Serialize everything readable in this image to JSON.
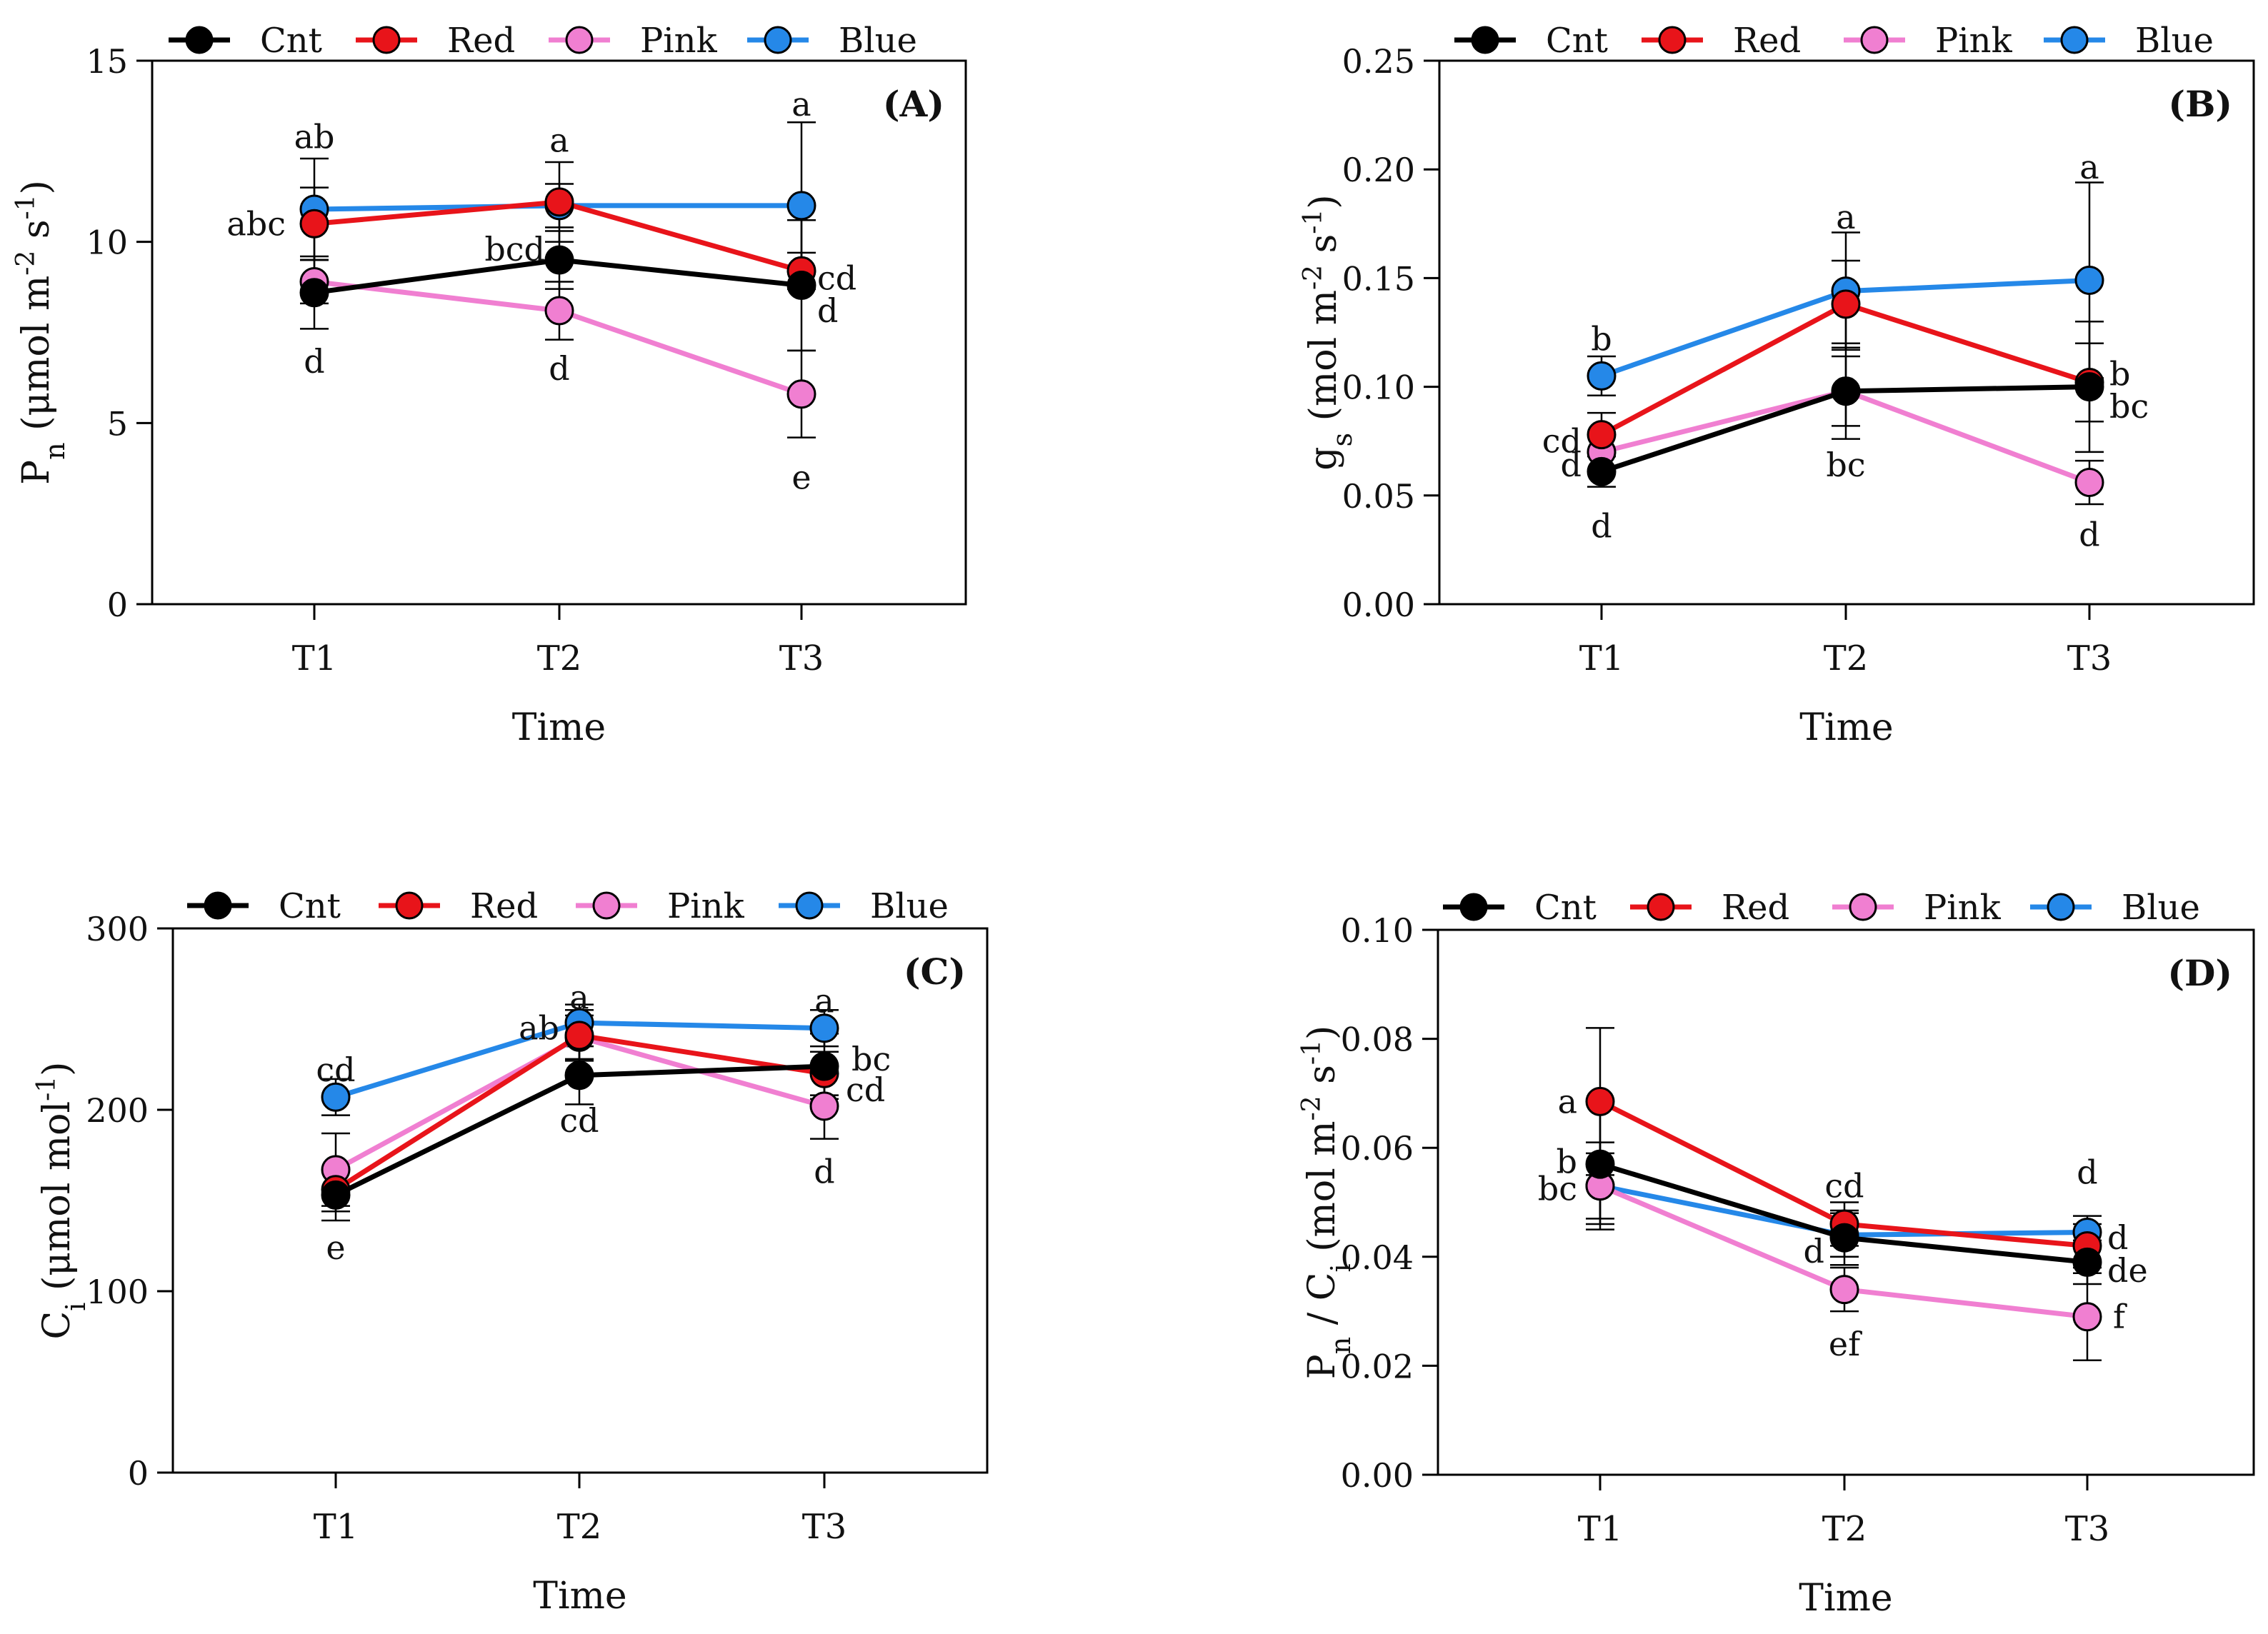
{
  "legend": {
    "labels": [
      "Cnt",
      "Red",
      "Pink",
      "Blue"
    ],
    "colors": [
      "#000000",
      "#e8141a",
      "#f07fd1",
      "#2588e8"
    ]
  },
  "chart_data": [
    {
      "id": "A",
      "type": "line",
      "panel_label": "(A)",
      "xlabel": "Time",
      "ylabel": "Pn (μmol m-2 s-1)",
      "ylabel_parts": {
        "main": "P",
        "sub": "n",
        "rest": " (μmol m",
        "exp1": "-2",
        "mid": " s",
        "exp2": "-1",
        "end": ")"
      },
      "categories": [
        "T1",
        "T2",
        "T3"
      ],
      "ylim": [
        0,
        15
      ],
      "yticks": [
        "0",
        "5",
        "10",
        "15"
      ],
      "ytick_values": [
        0,
        5,
        10,
        15
      ],
      "series": [
        {
          "name": "Cnt",
          "values": [
            8.6,
            9.5,
            8.8
          ],
          "err": [
            1.0,
            0.8,
            1.8
          ]
        },
        {
          "name": "Red",
          "values": [
            10.5,
            11.1,
            9.2
          ],
          "err": [
            1.0,
            1.1,
            0.5
          ]
        },
        {
          "name": "Pink",
          "values": [
            8.9,
            8.1,
            5.8
          ],
          "err": [
            0.6,
            0.8,
            1.2
          ]
        },
        {
          "name": "Blue",
          "values": [
            10.9,
            11.0,
            11.0
          ],
          "err": [
            1.4,
            0.6,
            2.3
          ]
        }
      ],
      "annotations": [
        {
          "text": "ab",
          "x": "T1",
          "y": 12.9,
          "align": "middle"
        },
        {
          "text": "abc",
          "x": "T1",
          "y": 10.5,
          "align": "end",
          "dx": -40
        },
        {
          "text": "d",
          "x": "T1",
          "y": 6.7,
          "align": "middle"
        },
        {
          "text": "a",
          "x": "T2",
          "y": 12.8,
          "align": "middle"
        },
        {
          "text": "bcd",
          "x": "T2",
          "y": 9.8,
          "align": "end",
          "dx": -20
        },
        {
          "text": "d",
          "x": "T2",
          "y": 6.5,
          "align": "middle"
        },
        {
          "text": "a",
          "x": "T3",
          "y": 13.8,
          "align": "middle"
        },
        {
          "text": "cd",
          "x": "T3",
          "y": 9.0,
          "align": "start",
          "dx": 22
        },
        {
          "text": "d",
          "x": "T3",
          "y": 8.1,
          "align": "start",
          "dx": 22
        },
        {
          "text": "e",
          "x": "T3",
          "y": 3.5,
          "align": "middle"
        }
      ]
    },
    {
      "id": "B",
      "type": "line",
      "panel_label": "(B)",
      "xlabel": "Time",
      "ylabel": "gs (mol m-2 s-1)",
      "ylabel_parts": {
        "main": "g",
        "sub": "s",
        "rest": " (mol m",
        "exp1": "-2",
        "mid": " s",
        "exp2": "-1",
        "end": ")"
      },
      "categories": [
        "T1",
        "T2",
        "T3"
      ],
      "ylim": [
        0,
        0.25
      ],
      "yticks": [
        "0.00",
        "0.05",
        "0.10",
        "0.15",
        "0.20",
        "0.25"
      ],
      "ytick_values": [
        0,
        0.05,
        0.1,
        0.15,
        0.2,
        0.25
      ],
      "series": [
        {
          "name": "Cnt",
          "values": [
            0.061,
            0.098,
            0.1
          ],
          "err": [
            0.007,
            0.022,
            0.03
          ]
        },
        {
          "name": "Red",
          "values": [
            0.078,
            0.138,
            0.102
          ],
          "err": [
            0.01,
            0.02,
            0.018
          ]
        },
        {
          "name": "Pink",
          "values": [
            0.07,
            0.098,
            0.056
          ],
          "err": [
            0.008,
            0.016,
            0.01
          ]
        },
        {
          "name": "Blue",
          "values": [
            0.105,
            0.144,
            0.149
          ],
          "err": [
            0.009,
            0.027,
            0.045
          ]
        }
      ],
      "annotations": [
        {
          "text": "b",
          "x": "T1",
          "y": 0.122,
          "align": "middle"
        },
        {
          "text": "cd",
          "x": "T1",
          "y": 0.075,
          "align": "end",
          "dx": -28
        },
        {
          "text": "d",
          "x": "T1",
          "y": 0.064,
          "align": "end",
          "dx": -28
        },
        {
          "text": "d",
          "x": "T1",
          "y": 0.036,
          "align": "middle"
        },
        {
          "text": "a",
          "x": "T2",
          "y": 0.178,
          "align": "middle"
        },
        {
          "text": "bc",
          "x": "T2",
          "y": 0.064,
          "align": "middle"
        },
        {
          "text": "a",
          "x": "T3",
          "y": 0.201,
          "align": "middle"
        },
        {
          "text": "b",
          "x": "T3",
          "y": 0.106,
          "align": "start",
          "dx": 28
        },
        {
          "text": "bc",
          "x": "T3",
          "y": 0.091,
          "align": "start",
          "dx": 28
        },
        {
          "text": "d",
          "x": "T3",
          "y": 0.032,
          "align": "middle"
        }
      ]
    },
    {
      "id": "C",
      "type": "line",
      "panel_label": "(C)",
      "xlabel": "Time",
      "ylabel": "Ci (μmol mol-1)",
      "ylabel_parts": {
        "main": "C",
        "sub": "i",
        "rest": " (μmol mol",
        "exp1": "-1",
        "mid": "",
        "exp2": "",
        "end": ")"
      },
      "categories": [
        "T1",
        "T2",
        "T3"
      ],
      "ylim": [
        0,
        300
      ],
      "yticks": [
        "0",
        "100",
        "200",
        "300"
      ],
      "ytick_values": [
        0,
        100,
        200,
        300
      ],
      "series": [
        {
          "name": "Cnt",
          "values": [
            153,
            219,
            224
          ],
          "err": [
            14,
            16,
            18
          ]
        },
        {
          "name": "Red",
          "values": [
            156,
            241,
            220
          ],
          "err": [
            12,
            14,
            12
          ]
        },
        {
          "name": "Pink",
          "values": [
            167,
            240,
            202
          ],
          "err": [
            20,
            12,
            18
          ]
        },
        {
          "name": "Blue",
          "values": [
            207,
            248,
            245
          ],
          "err": [
            10,
            10,
            10
          ]
        }
      ],
      "annotations": [
        {
          "text": "cd",
          "x": "T1",
          "y": 222,
          "align": "middle"
        },
        {
          "text": "e",
          "x": "T1",
          "y": 124,
          "align": "middle"
        },
        {
          "text": "a",
          "x": "T2",
          "y": 262,
          "align": "middle"
        },
        {
          "text": "ab",
          "x": "T2",
          "y": 245,
          "align": "end",
          "dx": -28
        },
        {
          "text": "cd",
          "x": "T2",
          "y": 194,
          "align": "middle"
        },
        {
          "text": "a",
          "x": "T3",
          "y": 260,
          "align": "middle"
        },
        {
          "text": "bc",
          "x": "T3",
          "y": 228,
          "align": "start",
          "dx": 38
        },
        {
          "text": "cd",
          "x": "T3",
          "y": 211,
          "align": "start",
          "dx": 30
        },
        {
          "text": "d",
          "x": "T3",
          "y": 166,
          "align": "middle"
        }
      ]
    },
    {
      "id": "D",
      "type": "line",
      "panel_label": "(D)",
      "xlabel": "Time",
      "ylabel": "Pn / Ci (mol m-2 s-1)",
      "ylabel_parts": {
        "main": "P",
        "sub": "n",
        "rest": " / C",
        "sub2": "i",
        "rest2": " (mol m",
        "exp1": "-2",
        "mid": " s",
        "exp2": "-1",
        "end": ")"
      },
      "categories": [
        "T1",
        "T2",
        "T3"
      ],
      "ylim": [
        0,
        0.1
      ],
      "yticks": [
        "0.00",
        "0.02",
        "0.04",
        "0.06",
        "0.08",
        "0.10"
      ],
      "ytick_values": [
        0,
        0.02,
        0.04,
        0.06,
        0.08,
        0.1
      ],
      "series": [
        {
          "name": "Cnt",
          "values": [
            0.057,
            0.0435,
            0.039
          ],
          "err": [
            0.011,
            0.005,
            0.004
          ]
        },
        {
          "name": "Red",
          "values": [
            0.0685,
            0.046,
            0.042
          ],
          "err": [
            0.0135,
            0.004,
            0.004
          ]
        },
        {
          "name": "Pink",
          "values": [
            0.053,
            0.034,
            0.029
          ],
          "err": [
            0.008,
            0.004,
            0.008
          ]
        },
        {
          "name": "Blue",
          "values": [
            0.053,
            0.044,
            0.0445
          ],
          "err": [
            0.006,
            0.004,
            0.003
          ]
        }
      ],
      "annotations": [
        {
          "text": "a",
          "x": "T1",
          "y": 0.0685,
          "align": "end",
          "dx": -32
        },
        {
          "text": "b",
          "x": "T1",
          "y": 0.0575,
          "align": "end",
          "dx": -32
        },
        {
          "text": "bc",
          "x": "T1",
          "y": 0.0525,
          "align": "end",
          "dx": -32
        },
        {
          "text": "cd",
          "x": "T2",
          "y": 0.053,
          "align": "middle"
        },
        {
          "text": "d",
          "x": "T2",
          "y": 0.041,
          "align": "end",
          "dx": -28
        },
        {
          "text": "ef",
          "x": "T2",
          "y": 0.024,
          "align": "middle"
        },
        {
          "text": "d",
          "x": "T3",
          "y": 0.0555,
          "align": "middle"
        },
        {
          "text": "d",
          "x": "T3",
          "y": 0.0435,
          "align": "start",
          "dx": 28
        },
        {
          "text": "de",
          "x": "T3",
          "y": 0.0375,
          "align": "start",
          "dx": 28
        },
        {
          "text": "f",
          "x": "T3",
          "y": 0.029,
          "align": "start",
          "dx": 36
        }
      ]
    }
  ]
}
